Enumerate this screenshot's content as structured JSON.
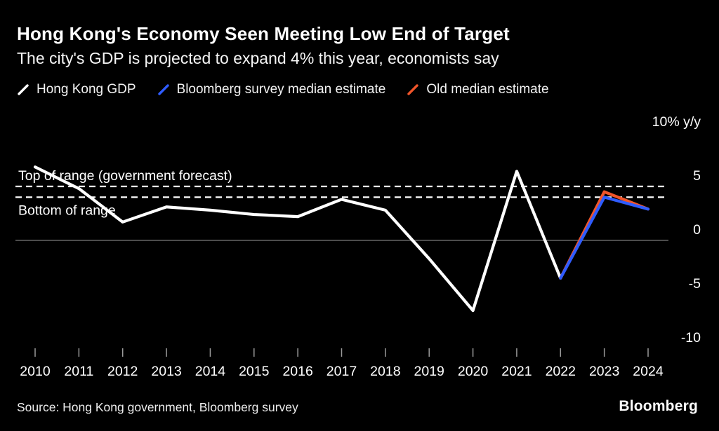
{
  "header": {
    "title": "Hong Kong's Economy Seen Meeting Low End of Target",
    "subtitle": "The city's GDP is projected to expand 4% this year, economists say"
  },
  "legend": [
    {
      "label": "Hong Kong GDP",
      "color": "#ffffff"
    },
    {
      "label": "Bloomberg survey median estimate",
      "color": "#2f5cff"
    },
    {
      "label": "Old median estimate",
      "color": "#f1552a"
    }
  ],
  "chart_data": {
    "type": "line",
    "title": "Hong Kong's Economy Seen Meeting Low End of Target",
    "x": [
      2010,
      2011,
      2012,
      2013,
      2014,
      2015,
      2016,
      2017,
      2018,
      2019,
      2020,
      2021,
      2022,
      2023,
      2024
    ],
    "series": [
      {
        "name": "Hong Kong GDP",
        "color": "#ffffff",
        "values": [
          6.8,
          4.8,
          1.7,
          3.1,
          2.8,
          2.4,
          2.2,
          3.8,
          2.8,
          -1.7,
          -6.5,
          6.4,
          -3.5,
          null,
          null
        ]
      },
      {
        "name": "Old median estimate",
        "color": "#f1552a",
        "values": [
          null,
          null,
          null,
          null,
          null,
          null,
          null,
          null,
          null,
          null,
          null,
          null,
          -3.5,
          4.5,
          2.9
        ]
      },
      {
        "name": "Bloomberg survey median estimate",
        "color": "#2f5cff",
        "values": [
          null,
          null,
          null,
          null,
          null,
          null,
          null,
          null,
          null,
          null,
          null,
          null,
          -3.5,
          4.0,
          2.9
        ]
      }
    ],
    "annotations": [
      {
        "label": "Top of range (government forecast)",
        "value": 5.0
      },
      {
        "label": "Bottom of range",
        "value": 4.0
      }
    ],
    "y_axis": {
      "top_label": "10% y/y",
      "ticks": [
        10,
        5,
        0,
        -5,
        -10
      ],
      "ylim": [
        -11.5,
        10.5
      ],
      "grid": "zero-line-only"
    },
    "legend_position": "top"
  },
  "footer": {
    "source": "Source: Hong Kong government, Bloomberg survey",
    "logo": "Bloomberg"
  }
}
